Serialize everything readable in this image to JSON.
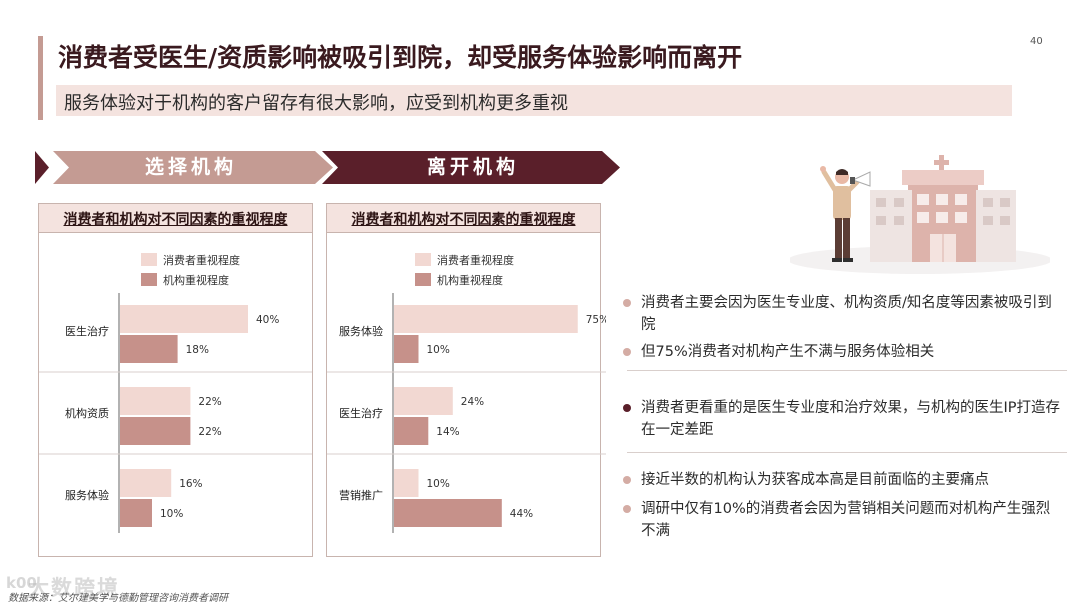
{
  "page_number": "40",
  "title": "消费者受医生/资质影响被吸引到院，却受服务体验影响而离开",
  "subtitle": "服务体验对于机构的客户留存有很大影响，应受到机构更多重视",
  "colors": {
    "accent_dark": "#5a1f2a",
    "accent_mid": "#c49b93",
    "accent_light": "#f4e3df",
    "consumer_bar": "#f2d8d2",
    "institution_bar": "#c6918a"
  },
  "sections": [
    {
      "label": "选择机构"
    },
    {
      "label": "离开机构"
    }
  ],
  "chart_data": [
    {
      "type": "bar",
      "orientation": "horizontal",
      "title": "消费者和机构对不同因素的重视程度",
      "categories": [
        "医生治疗",
        "机构资质",
        "服务体验"
      ],
      "series": [
        {
          "name": "消费者重视程度",
          "values": [
            40,
            22,
            16
          ],
          "labels": [
            "40%",
            "22%",
            "16%"
          ]
        },
        {
          "name": "机构重视程度",
          "values": [
            18,
            22,
            10
          ],
          "labels": [
            "18%",
            "22%",
            "10%"
          ]
        }
      ],
      "legend": "top"
    },
    {
      "type": "bar",
      "orientation": "horizontal",
      "title": "消费者和机构对不同因素的重视程度",
      "categories": [
        "服务体验",
        "医生治疗",
        "营销推广"
      ],
      "series": [
        {
          "name": "消费者重视程度",
          "values": [
            75,
            24,
            10
          ],
          "labels": [
            "75%",
            "24%",
            "10%"
          ]
        },
        {
          "name": "机构重视程度",
          "values": [
            10,
            14,
            44
          ],
          "labels": [
            "10%",
            "14%",
            "44%"
          ]
        }
      ],
      "legend": "top"
    }
  ],
  "bullets": [
    {
      "text": "消费者主要会因为医生专业度、机构资质/知名度等因素被吸引到院",
      "style": "light"
    },
    {
      "text": "但75%消费者对机构产生不满与服务体验相关",
      "style": "light"
    },
    {
      "text": "消费者更看重的是医生专业度和治疗效果，与机构的医生IP打造存在一定差距",
      "style": "dark"
    },
    {
      "text": "接近半数的机构认为获客成本高是目前面临的主要痛点",
      "style": "light"
    },
    {
      "text": "调研中仅有10%的消费者会因为营销相关问题而对机构产生强烈不满",
      "style": "light"
    }
  ],
  "footnote": "数据来源：艾尔建美学与德勤管理咨询消费者调研",
  "watermark": "大数跨境",
  "watermark_logo": "k00",
  "illustration": {
    "icons": [
      "hospital-building-icon",
      "person-megaphone-icon"
    ]
  }
}
